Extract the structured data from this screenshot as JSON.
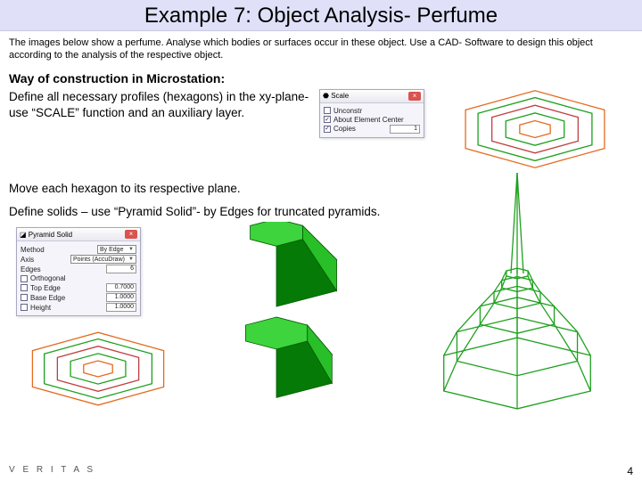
{
  "title": "Example 7: Object Analysis- Perfume",
  "intro": "The images below show a perfume. Analyse which bodies or surfaces occur in these object. Use a CAD- Software to design this object according to the analysis of the respective object.",
  "subhead": "Way of construction in Microstation:",
  "step1": "Define all necessary profiles (hexagons) in the xy-plane- use “SCALE” function and an auxiliary layer.",
  "step2": "Move each hexagon to its respective plane.",
  "step3": "Define solids – use “Pyramid Solid”- by Edges for truncated pyramids.",
  "dialog1": {
    "title": "Scale",
    "opt_unconstr": "Unconstr",
    "opt_about": "About Element Center",
    "opt_copies": "Copies",
    "copies_val": "1"
  },
  "dialog2": {
    "title": "Pyramid Solid",
    "method_label": "Method",
    "method_val": "By Edge",
    "axis_label": "Axis",
    "axis_val": "Points (AccuDraw)",
    "edges_label": "Edges",
    "edges_val": "6",
    "opt_ortho": "Orthogonal",
    "opt_top": "Top Edge",
    "top_val": "0.7000",
    "opt_base": "Base Edge",
    "base_val": "1.0000",
    "opt_height": "Height",
    "height_val": "1.0000"
  },
  "hex_wire": {
    "colors": [
      "#e46a1f",
      "#1ea01e",
      "#c04040",
      "#1ea01e",
      "#e46a1f"
    ],
    "scales": [
      1.0,
      0.82,
      0.62,
      0.42,
      0.22
    ],
    "stroke_width": 1.3
  },
  "hex_stack3d": {
    "colors": [
      "#1ea01e",
      "#e46a1f",
      "#e0c000",
      "#1ea01e"
    ],
    "stroke_width": 1.3
  },
  "solid": {
    "fill_top": "#3dd43d",
    "fill_left": "#0aa00a",
    "fill_right": "#28bf28",
    "fill_dark": "#067a06",
    "stroke": "#045a04"
  },
  "bottle_wire": {
    "color": "#1ea01e",
    "stroke_width": 1.3
  },
  "footer": {
    "brand": "V E R I T A S",
    "page": "4"
  }
}
